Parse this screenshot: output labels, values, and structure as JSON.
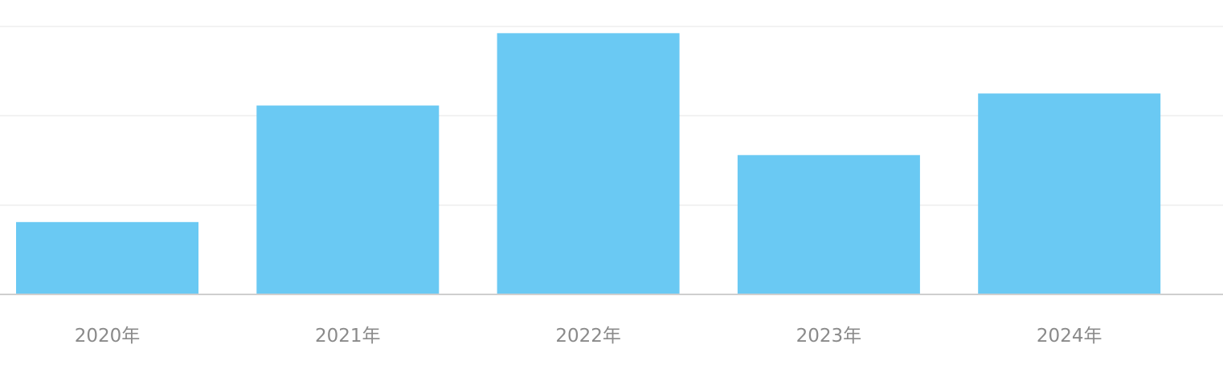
{
  "chart_data": {
    "type": "bar",
    "categories": [
      "2020年",
      "2021年",
      "2022年",
      "2023年",
      "2024年"
    ],
    "values": [
      27,
      70.5,
      97.5,
      52,
      75
    ],
    "ylim": [
      0,
      100
    ],
    "yticks": [
      0,
      33.3,
      66.7,
      100
    ],
    "grid": true,
    "bar_color": "#6ac9f3",
    "grid_color": "#eeeeee",
    "axis_color": "#cfcfcf",
    "label_color": "#8a8a8a"
  }
}
